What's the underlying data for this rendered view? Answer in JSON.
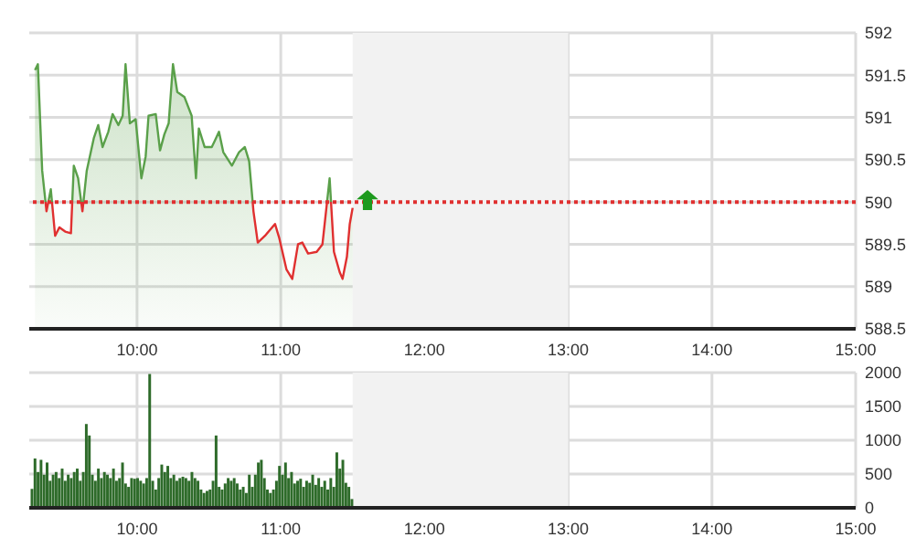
{
  "chart_data": [
    {
      "type": "area",
      "x": [
        9.29,
        9.31,
        9.34,
        9.37,
        9.4,
        9.43,
        9.46,
        9.5,
        9.54,
        9.56,
        9.59,
        9.62,
        9.65,
        9.7,
        9.73,
        9.76,
        9.8,
        9.83,
        9.87,
        9.9,
        9.92,
        9.95,
        9.99,
        10.03,
        10.06,
        10.08,
        10.13,
        10.16,
        10.19,
        10.22,
        10.25,
        10.28,
        10.33,
        10.38,
        10.41,
        10.43,
        10.47,
        10.52,
        10.54,
        10.57,
        10.6,
        10.66,
        10.71,
        10.75,
        10.78,
        10.81,
        10.84,
        10.89,
        10.96,
        10.99,
        11.04,
        11.08,
        11.12,
        11.15,
        11.19,
        11.25,
        11.29,
        11.34,
        11.37,
        11.41,
        11.43,
        11.46,
        11.48,
        11.5
      ],
      "series": [
        {
          "color": "#5aa04a",
          "values": [
            591.56,
            591.63,
            590.37,
            589.89,
            590.15,
            589.6,
            589.7,
            589.65,
            589.63,
            590.43,
            590.28,
            589.89,
            590.37,
            590.76,
            590.91,
            590.65,
            590.83,
            591.04,
            590.91,
            591.02,
            591.63,
            590.93,
            590.98,
            590.28,
            590.54,
            591.02,
            591.04,
            590.61,
            590.8,
            590.93,
            591.63,
            591.3,
            591.24,
            591.02,
            590.28,
            590.87,
            590.65,
            590.65,
            590.72,
            590.83,
            590.59,
            590.43,
            590.59,
            590.65,
            590.48,
            589.89,
            589.52,
            589.6,
            589.74,
            589.57,
            589.2,
            589.09,
            589.5,
            589.52,
            589.39,
            589.41,
            589.5,
            590.28,
            589.41,
            589.17,
            589.09,
            589.35,
            589.74,
            589.93
          ]
        }
      ],
      "xlim": [
        9.25,
        15
      ],
      "xticks": [
        {
          "value": 10,
          "label": "10:00"
        },
        {
          "value": 11,
          "label": "11:00"
        },
        {
          "value": 12,
          "label": "12:00"
        },
        {
          "value": 13,
          "label": "13:00"
        },
        {
          "value": 14,
          "label": "14:00"
        },
        {
          "value": 15,
          "label": "15:00"
        }
      ],
      "ylim": [
        588.5,
        592
      ],
      "yticks": [
        588.5,
        589,
        589.5,
        590,
        590.5,
        591,
        591.5,
        592
      ],
      "grid": true,
      "ref_lines": [
        {
          "axis": "y",
          "value": 590,
          "color": "#e03030",
          "line_style": "dotted"
        }
      ],
      "bands": [
        {
          "axis": "x",
          "from": 11.5,
          "to": 13,
          "color": "#f2f2f2"
        }
      ]
    },
    {
      "type": "bar",
      "x": [
        9.27,
        9.291,
        9.312,
        9.333,
        9.354,
        9.375,
        9.396,
        9.417,
        9.438,
        9.459,
        9.48,
        9.501,
        9.522,
        9.543,
        9.564,
        9.585,
        9.606,
        9.627,
        9.648,
        9.669,
        9.69,
        9.711,
        9.732,
        9.753,
        9.774,
        9.795,
        9.816,
        9.837,
        9.858,
        9.879,
        9.9,
        9.921,
        9.942,
        9.963,
        9.984,
        10.005,
        10.026,
        10.047,
        10.068,
        10.089,
        10.11,
        10.131,
        10.152,
        10.173,
        10.194,
        10.215,
        10.236,
        10.257,
        10.278,
        10.299,
        10.32,
        10.341,
        10.362,
        10.383,
        10.404,
        10.425,
        10.446,
        10.467,
        10.488,
        10.509,
        10.53,
        10.551,
        10.572,
        10.593,
        10.614,
        10.635,
        10.656,
        10.677,
        10.698,
        10.719,
        10.74,
        10.761,
        10.782,
        10.803,
        10.824,
        10.845,
        10.866,
        10.887,
        10.908,
        10.929,
        10.95,
        10.971,
        10.992,
        11.013,
        11.034,
        11.055,
        11.076,
        11.097,
        11.118,
        11.139,
        11.16,
        11.181,
        11.202,
        11.223,
        11.244,
        11.265,
        11.286,
        11.307,
        11.328,
        11.349,
        11.37,
        11.391,
        11.412,
        11.433,
        11.454,
        11.475,
        11.496
      ],
      "series": [
        {
          "color": "#2e6b2a",
          "values": [
            280,
            730,
            530,
            710,
            490,
            670,
            400,
            490,
            530,
            440,
            580,
            400,
            490,
            440,
            530,
            580,
            400,
            530,
            1240,
            1070,
            490,
            400,
            580,
            440,
            530,
            490,
            440,
            580,
            400,
            440,
            670,
            360,
            310,
            440,
            430,
            440,
            400,
            360,
            440,
            1980,
            400,
            270,
            440,
            640,
            530,
            620,
            440,
            490,
            400,
            440,
            460,
            440,
            400,
            530,
            440,
            400,
            270,
            220,
            250,
            270,
            400,
            1070,
            310,
            270,
            360,
            440,
            400,
            440,
            360,
            270,
            310,
            220,
            490,
            310,
            490,
            670,
            710,
            440,
            270,
            220,
            270,
            400,
            620,
            490,
            670,
            440,
            530,
            360,
            400,
            430,
            310,
            400,
            370,
            490,
            340,
            440,
            310,
            400,
            270,
            440,
            310,
            820,
            580,
            710,
            370,
            310,
            130
          ]
        }
      ],
      "xlim": [
        9.25,
        15
      ],
      "xticks": [
        {
          "value": 10,
          "label": "10:00"
        },
        {
          "value": 11,
          "label": "11:00"
        },
        {
          "value": 12,
          "label": "12:00"
        },
        {
          "value": 13,
          "label": "13:00"
        },
        {
          "value": 14,
          "label": "14:00"
        },
        {
          "value": 15,
          "label": "15:00"
        }
      ],
      "ylim": [
        0,
        2000
      ],
      "yticks": [
        0,
        500,
        1000,
        1500,
        2000
      ],
      "grid": true,
      "bands": [
        {
          "axis": "x",
          "from": 11.5,
          "to": 13,
          "color": "#f2f2f2"
        }
      ]
    }
  ]
}
